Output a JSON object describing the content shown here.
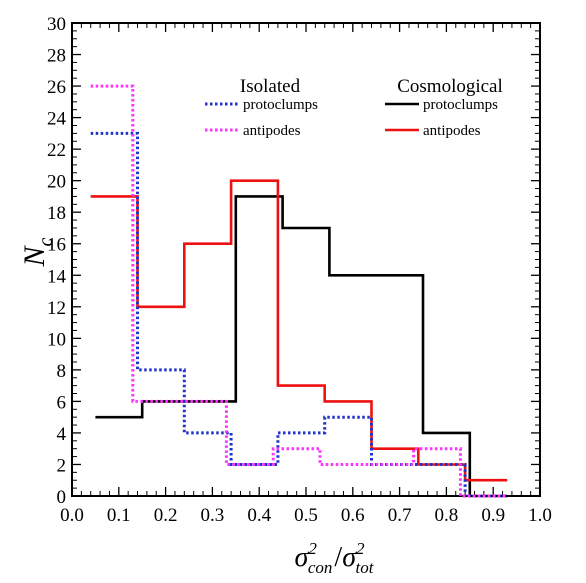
{
  "chart_data": {
    "type": "line",
    "style": "step histogram",
    "xlabel": {
      "base1": "σ",
      "sup1": "2",
      "sub1": "con",
      "sep": "/",
      "base2": "σ",
      "sup2": "2",
      "sub2": "tot"
    },
    "ylabel": {
      "base": "N",
      "sub": "c"
    },
    "xlim": [
      0.0,
      1.0
    ],
    "ylim": [
      0,
      30
    ],
    "xticks": [
      "0.0",
      "0.1",
      "0.2",
      "0.3",
      "0.4",
      "0.5",
      "0.6",
      "0.7",
      "0.8",
      "0.9",
      "1.0"
    ],
    "yticks": [
      "0",
      "2",
      "4",
      "6",
      "8",
      "10",
      "12",
      "14",
      "16",
      "18",
      "20",
      "22",
      "24",
      "26",
      "28",
      "30"
    ],
    "grid": false,
    "legend": {
      "placement": "top",
      "groups": [
        {
          "title": "Isolated",
          "entries": [
            "protoclumps",
            "antipodes"
          ]
        },
        {
          "title": "Cosmological",
          "entries": [
            "protoclumps",
            "antipodes"
          ]
        }
      ]
    },
    "series": [
      {
        "name": "protoclumps",
        "group": "Isolated",
        "color": "#2233cc",
        "dash": "dotted",
        "x": [
          0.04,
          0.14,
          0.24,
          0.34,
          0.44,
          0.54,
          0.64,
          0.74,
          0.84
        ],
        "y": [
          23,
          8,
          4,
          2,
          4,
          5,
          2,
          2,
          0
        ],
        "x_end": 0.93
      },
      {
        "name": "antipodes",
        "group": "Isolated",
        "color": "#ff33ff",
        "dash": "dotted",
        "x": [
          0.04,
          0.13,
          0.23,
          0.33,
          0.43,
          0.53,
          0.63,
          0.73,
          0.83
        ],
        "y": [
          26,
          6,
          6,
          2,
          3,
          2,
          2,
          3,
          0
        ],
        "x_end": 0.93
      },
      {
        "name": "protoclumps",
        "group": "Cosmological",
        "color": "#000000",
        "dash": "solid",
        "x": [
          0.05,
          0.15,
          0.25,
          0.35,
          0.45,
          0.55,
          0.65,
          0.75,
          0.85
        ],
        "y": [
          5,
          6,
          6,
          19,
          17,
          14,
          14,
          4,
          0
        ],
        "x_end": 0.93
      },
      {
        "name": "antipodes",
        "group": "Cosmological",
        "color": "#ee1111",
        "dash": "solid",
        "x": [
          0.04,
          0.14,
          0.24,
          0.34,
          0.44,
          0.54,
          0.64,
          0.74,
          0.84
        ],
        "y": [
          19,
          12,
          16,
          20,
          7,
          6,
          3,
          2,
          1
        ],
        "x_end": 0.93
      }
    ]
  }
}
